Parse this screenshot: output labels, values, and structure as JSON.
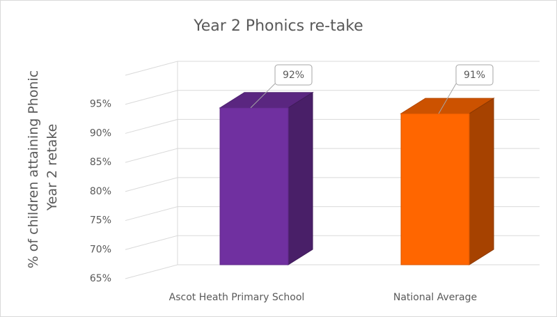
{
  "chart_data": {
    "type": "bar3d",
    "title": "Year 2 Phonics re-take",
    "y_label": [
      "% of children attaining Phonic",
      "Year 2 retake"
    ],
    "categories": [
      "Ascot Heath Primary School",
      "National Average"
    ],
    "values": [
      92,
      91
    ],
    "value_labels": [
      "92%",
      "91%"
    ],
    "colors": [
      "#7030a0",
      "#ff6600"
    ],
    "ylim": [
      65,
      100
    ],
    "yticks": [
      {
        "value": 65,
        "label": "65%"
      },
      {
        "value": 70,
        "label": "70%"
      },
      {
        "value": 75,
        "label": "75%"
      },
      {
        "value": 80,
        "label": "80%"
      },
      {
        "value": 85,
        "label": "85%"
      },
      {
        "value": 90,
        "label": "90%"
      },
      {
        "value": 95,
        "label": "95%"
      }
    ],
    "grid": true
  }
}
